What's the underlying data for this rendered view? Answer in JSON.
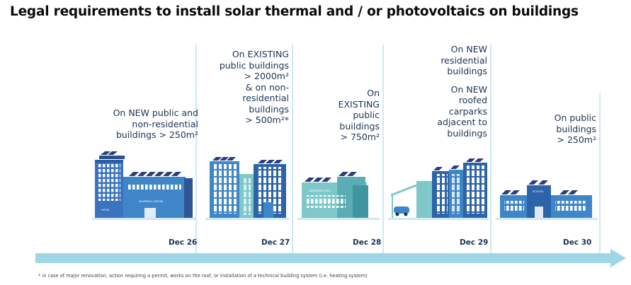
{
  "title": "Legal requirements to install solar thermal and / or photovoltaics on buildings",
  "stages": [
    {
      "date": "Dec 26",
      "lines": [
        "On NEW public and",
        "non-residential",
        "buildings > 250m²"
      ]
    },
    {
      "date": "Dec 27",
      "lines": [
        "On EXISTING",
        "public buildings",
        "> 2000m²",
        "& on non-",
        "residential",
        "buildings",
        "> 500m²*"
      ]
    },
    {
      "date": "Dec 28",
      "lines": [
        "On",
        "EXISTING",
        "public",
        "buildings",
        "> 750m²"
      ]
    },
    {
      "date": "Dec 29",
      "lines": [
        "On NEW",
        "residential",
        "buildings",
        "",
        "On NEW",
        "roofed",
        "carparks",
        "adjacent to",
        "buildings"
      ]
    },
    {
      "date": "Dec 30",
      "lines": [
        "On public",
        "buildings",
        "> 250m²"
      ]
    }
  ],
  "building_labels": {
    "hotel": "HOTEL",
    "shopping": "SHOPPING CENTRE",
    "pool": "SWIMMING POOL",
    "school": "SCHOOL"
  },
  "footnote": "* in case of major renovation, action requiring a permit, works on the roof, or installation of a technical building system (i.e. heating system)",
  "colors": {
    "dark_blue": "#2d63a8",
    "mid_blue": "#3f86c8",
    "teal": "#7fc8c9",
    "arrow": "#9fd6e6",
    "navy": "#1c3454"
  }
}
